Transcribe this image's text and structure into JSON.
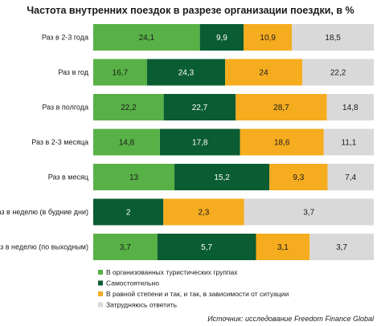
{
  "chart_data": {
    "type": "bar",
    "orientation": "horizontal",
    "stacked": true,
    "title": "Частота внутренних поездок в разрезе организации поездки, в %",
    "categories": [
      "Раз в 2-3 года",
      "Раз в год",
      "Раз в полгода",
      "Раз в 2-3 месяца",
      "Раз в месяц",
      "Раз в неделю (в будние дни)",
      "Раз в неделю (по выходным)"
    ],
    "series": [
      {
        "name": "В организованных туристических группах",
        "color": "#58b146",
        "values": [
          24.1,
          16.7,
          22.2,
          14.8,
          13,
          0,
          3.7
        ],
        "labels": [
          "24,1",
          "16,7",
          "22,2",
          "14,8",
          "13",
          "0",
          "3,7"
        ]
      },
      {
        "name": "Самостоятельно",
        "color": "#0a5c32",
        "values": [
          9.9,
          24.3,
          22.7,
          17.8,
          15.2,
          2,
          5.7
        ],
        "labels": [
          "9,9",
          "24,3",
          "22,7",
          "17,8",
          "15,2",
          "2",
          "5,7"
        ]
      },
      {
        "name": "В равной степени и так, и так, в зависимости от ситуации",
        "color": "#f5ac1e",
        "values": [
          10.9,
          24,
          28.7,
          18.6,
          9.3,
          2.3,
          3.1
        ],
        "labels": [
          "10,9",
          "24",
          "28,7",
          "18,6",
          "9,3",
          "2,3",
          "3,1"
        ]
      },
      {
        "name": "Затрудняюсь ответить",
        "color": "#d9d9d9",
        "values": [
          18.5,
          22.2,
          14.8,
          11.1,
          7.4,
          3.7,
          3.7
        ],
        "labels": [
          "18,5",
          "22,2",
          "14,8",
          "11,1",
          "7,4",
          "3,7",
          "3,7"
        ]
      }
    ],
    "legend_position": "bottom-left",
    "grid": false,
    "source": "Источник: исследование Freedom Finance Global"
  }
}
